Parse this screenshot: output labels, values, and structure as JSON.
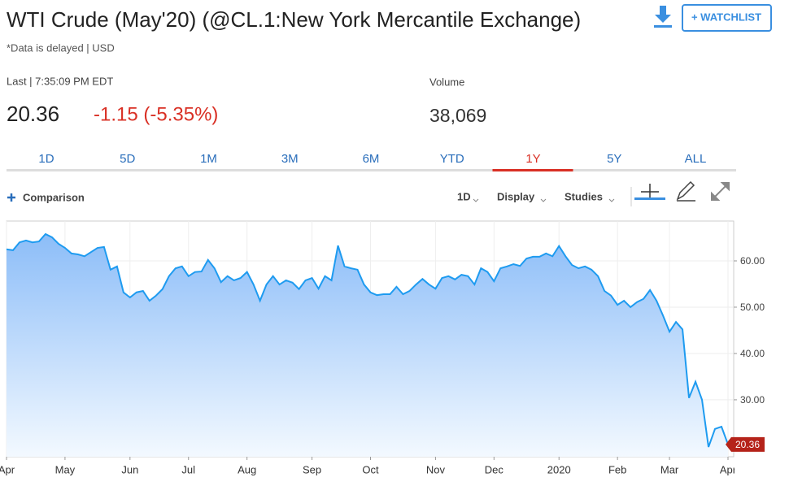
{
  "header": {
    "title": "WTI Crude (May'20) (@CL.1:New York Mercantile Exchange)",
    "subtitle": "*Data is delayed | USD",
    "watchlist": "+ WATCHLIST"
  },
  "quote": {
    "last_label": "Last | 7:35:09 PM EDT",
    "last": "20.36",
    "change": "-1.15 (-5.35%)",
    "volume_label": "Volume",
    "volume": "38,069"
  },
  "tabs": {
    "items": [
      "1D",
      "5D",
      "1M",
      "3M",
      "6M",
      "YTD",
      "1Y",
      "5Y",
      "ALL"
    ],
    "active": 6
  },
  "toolbar": {
    "comparison": "Comparison",
    "interval": "1D",
    "display": "Display",
    "studies": "Studies"
  },
  "chart_data": {
    "type": "area",
    "color": "#1e9bf0",
    "categories": [
      "Apr",
      null,
      null,
      null,
      null,
      null,
      null,
      null,
      null,
      "May",
      null,
      null,
      null,
      null,
      null,
      null,
      null,
      null,
      null,
      "Jun",
      null,
      null,
      null,
      null,
      null,
      null,
      null,
      null,
      "Jul",
      null,
      null,
      null,
      null,
      null,
      null,
      null,
      null,
      "Aug",
      null,
      null,
      null,
      null,
      null,
      null,
      null,
      null,
      null,
      "Sep",
      null,
      null,
      null,
      null,
      null,
      null,
      null,
      null,
      "Oct",
      null,
      null,
      null,
      null,
      null,
      null,
      null,
      null,
      null,
      "Nov",
      null,
      null,
      null,
      null,
      null,
      null,
      null,
      null,
      "Dec",
      null,
      null,
      null,
      null,
      null,
      null,
      null,
      null,
      null,
      "2020",
      null,
      null,
      null,
      null,
      null,
      null,
      null,
      null,
      "Feb",
      null,
      null,
      null,
      null,
      null,
      null,
      null,
      "Mar",
      null,
      null,
      null,
      null,
      null,
      null,
      null,
      null,
      "Apr"
    ],
    "values": [
      62.5,
      62.3,
      64.0,
      64.4,
      64.0,
      64.2,
      65.8,
      65.1,
      63.7,
      62.8,
      61.6,
      61.4,
      61.0,
      61.9,
      62.8,
      63.0,
      58.1,
      58.8,
      53.2,
      52.1,
      53.2,
      53.5,
      51.4,
      52.5,
      53.9,
      56.7,
      58.4,
      58.8,
      56.7,
      57.6,
      57.7,
      60.2,
      58.4,
      55.4,
      56.7,
      55.8,
      56.3,
      57.6,
      54.9,
      51.4,
      54.9,
      56.7,
      54.9,
      55.8,
      55.3,
      53.9,
      55.8,
      56.3,
      54.0,
      56.7,
      55.8,
      63.3,
      58.8,
      58.4,
      58.1,
      54.9,
      53.2,
      52.6,
      52.8,
      52.8,
      54.4,
      52.8,
      53.5,
      54.9,
      56.1,
      54.9,
      54.0,
      56.3,
      56.7,
      56.0,
      57.0,
      56.7,
      54.9,
      58.4,
      57.6,
      55.6,
      58.4,
      58.8,
      59.3,
      58.9,
      60.5,
      60.9,
      60.9,
      61.6,
      61.0,
      63.2,
      61.0,
      59.1,
      58.4,
      58.8,
      58.1,
      56.7,
      53.5,
      52.5,
      50.5,
      51.4,
      50.0,
      51.1,
      51.8,
      53.7,
      51.4,
      48.2,
      44.7,
      46.8,
      45.2,
      30.4,
      33.9,
      30.0,
      19.8,
      23.7,
      24.2,
      20.36
    ],
    "ylim": [
      17.7,
      68.6
    ],
    "yticks": [
      {
        "value": 30,
        "label": "30.00"
      },
      {
        "value": 40,
        "label": "40.00"
      },
      {
        "value": 50,
        "label": "50.00"
      },
      {
        "value": 60,
        "label": "60.00"
      }
    ],
    "grid": true
  }
}
